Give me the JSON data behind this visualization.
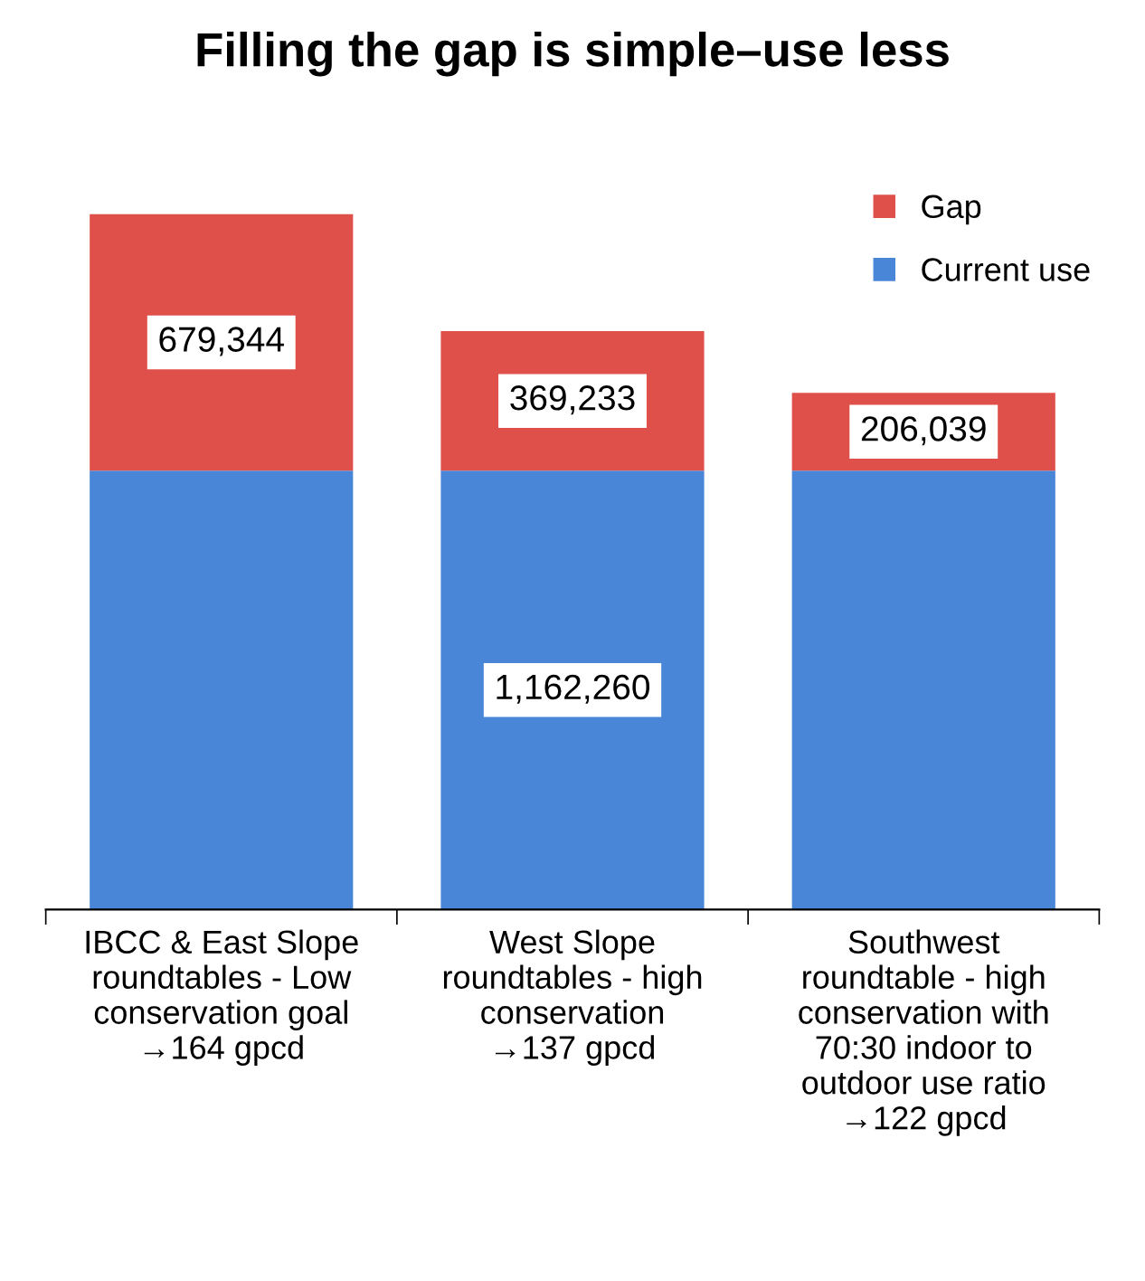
{
  "chart_data": {
    "type": "bar",
    "stacked": true,
    "title": "Filling the gap is simple–use less",
    "categories": [
      "IBCC & East Slope\nroundtables - Low\nconservation goal\n→164 gpcd",
      "West Slope\nroundtables - high\nconservation\n→137 gpcd",
      "Southwest\nroundtable - high\nconservation with\n70:30 indoor to\noutdoor use ratio\n→122 gpcd"
    ],
    "series": [
      {
        "name": "Current use",
        "color": "#4a86d8",
        "values": [
          1162260,
          1162260,
          1162260
        ],
        "value_labels": [
          null,
          "1,162,260",
          null
        ]
      },
      {
        "name": "Gap",
        "color": "#e0504a",
        "values": [
          679344,
          369233,
          206039
        ],
        "value_labels": [
          "679,344",
          "369,233",
          "206,039"
        ]
      }
    ],
    "legend": "top right",
    "grid": false
  }
}
